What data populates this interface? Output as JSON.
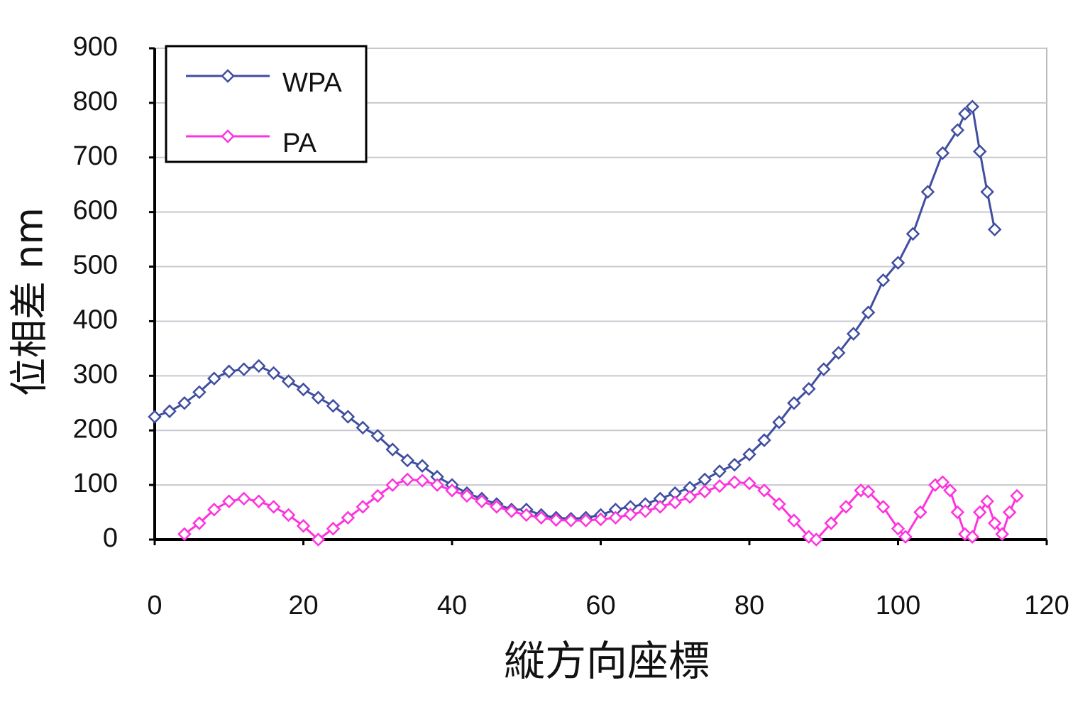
{
  "chart_data": {
    "type": "line",
    "x_label": "縦方向座標",
    "y_label": "位相差 nm",
    "xlim": [
      0,
      120
    ],
    "xticks": [
      0,
      20,
      40,
      60,
      80,
      100,
      120
    ],
    "ylim": [
      0,
      900
    ],
    "yticks": [
      0,
      100,
      200,
      300,
      400,
      500,
      600,
      700,
      800,
      900
    ],
    "grid": true,
    "legend": "upper left",
    "series": [
      {
        "name": "WPA",
        "color": "#3f4ea0",
        "x": [
          0,
          2,
          4,
          6,
          8,
          10,
          12,
          14,
          16,
          18,
          20,
          22,
          24,
          26,
          28,
          30,
          32,
          34,
          36,
          38,
          40,
          42,
          44,
          46,
          48,
          50,
          52,
          54,
          56,
          58,
          60,
          62,
          64,
          66,
          68,
          70,
          72,
          74,
          76,
          78,
          80,
          82,
          84,
          86,
          88,
          90,
          92,
          94,
          96,
          98,
          100,
          102,
          104,
          106,
          108,
          109,
          110,
          111,
          112,
          113
        ],
        "values": [
          225,
          235,
          250,
          270,
          295,
          308,
          312,
          318,
          305,
          290,
          275,
          260,
          245,
          225,
          205,
          190,
          165,
          145,
          135,
          115,
          100,
          85,
          75,
          65,
          55,
          55,
          45,
          40,
          38,
          40,
          45,
          55,
          60,
          65,
          75,
          85,
          95,
          110,
          125,
          137,
          156,
          182,
          215,
          250,
          276,
          312,
          342,
          377,
          416,
          475,
          507,
          560,
          637,
          708,
          750,
          780,
          793,
          711,
          637,
          568
        ]
      },
      {
        "name": "PA",
        "color": "#ff33dd",
        "x": [
          4,
          6,
          8,
          10,
          12,
          14,
          16,
          18,
          20,
          22,
          24,
          26,
          28,
          30,
          32,
          34,
          36,
          38,
          40,
          42,
          44,
          46,
          48,
          50,
          52,
          54,
          56,
          58,
          60,
          62,
          64,
          66,
          68,
          70,
          72,
          74,
          76,
          78,
          80,
          82,
          84,
          86,
          88,
          89,
          91,
          93,
          95,
          96,
          98,
          100,
          101,
          103,
          105,
          106,
          107,
          108,
          109,
          110,
          111,
          112,
          113,
          114,
          115,
          116
        ],
        "values": [
          10,
          30,
          55,
          70,
          75,
          70,
          60,
          45,
          25,
          0,
          20,
          40,
          60,
          80,
          100,
          110,
          108,
          100,
          90,
          80,
          70,
          60,
          52,
          45,
          40,
          36,
          35,
          35,
          37,
          40,
          46,
          52,
          60,
          68,
          78,
          88,
          98,
          105,
          103,
          90,
          65,
          35,
          5,
          0,
          30,
          60,
          90,
          88,
          60,
          20,
          5,
          50,
          100,
          105,
          90,
          50,
          10,
          5,
          50,
          70,
          30,
          10,
          50,
          80
        ]
      }
    ]
  }
}
